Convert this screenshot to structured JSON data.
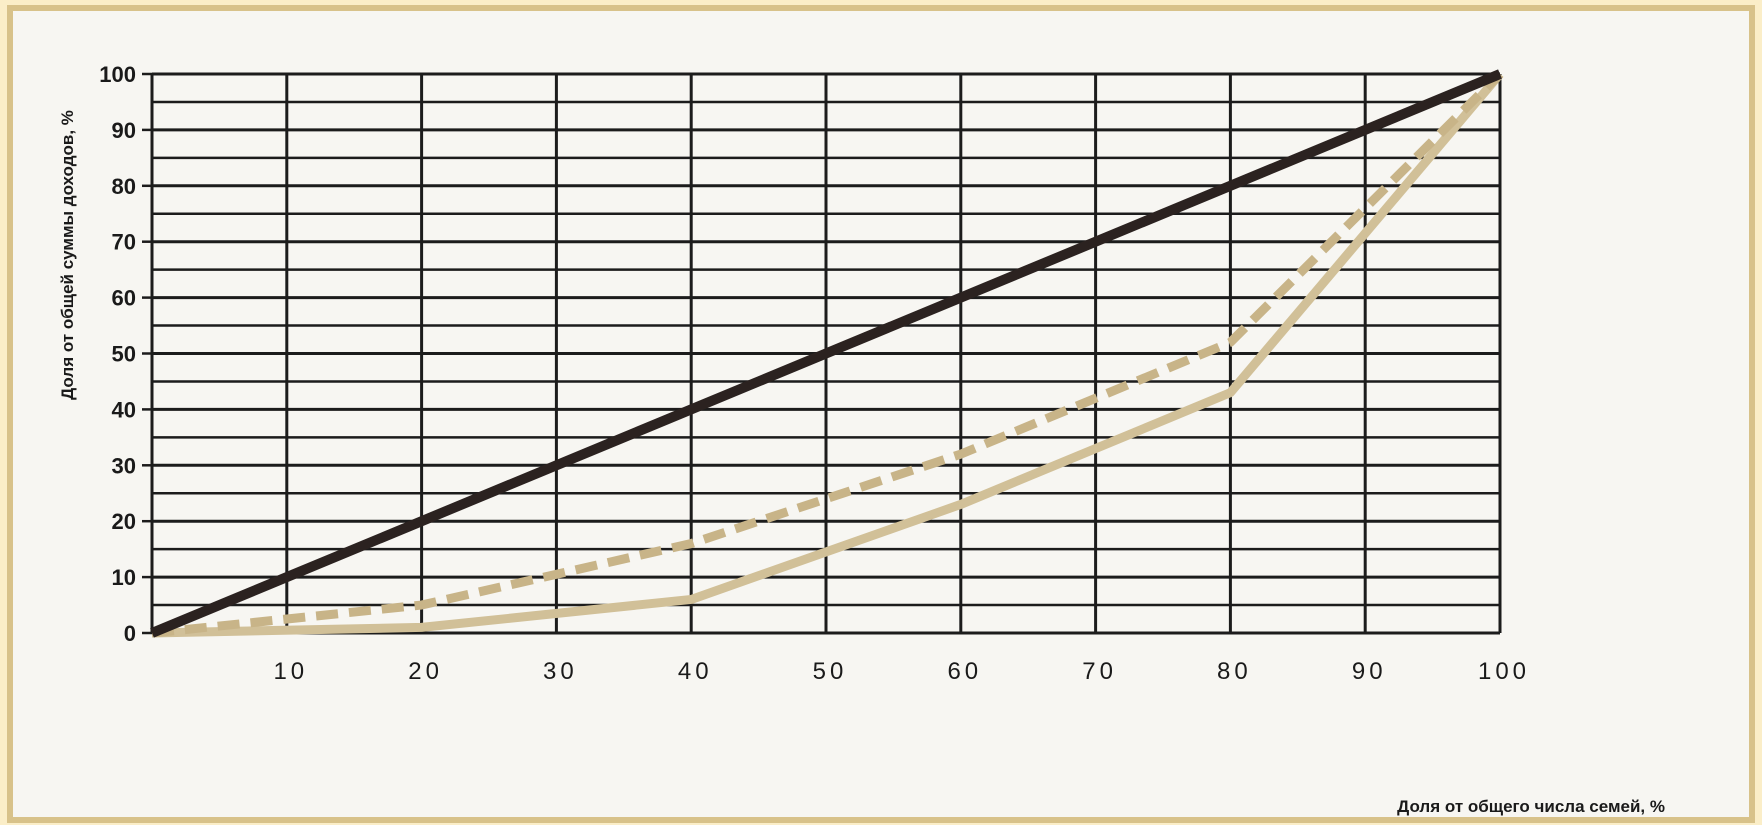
{
  "chart_data": {
    "type": "line",
    "title": "",
    "xlabel": "Доля от общего числа семей, %",
    "ylabel": "Доля от общей суммы доходов, %",
    "xlim": [
      0,
      100
    ],
    "ylim": [
      0,
      100
    ],
    "x_ticks": [
      "10",
      "20",
      "30",
      "40",
      "50",
      "60",
      "70",
      "80",
      "90",
      "100"
    ],
    "y_ticks": [
      "0",
      "10",
      "20",
      "30",
      "40",
      "50",
      "60",
      "70",
      "80",
      "90",
      "100"
    ],
    "grid": true,
    "series": [
      {
        "style": "solid",
        "color": "#2b2220",
        "x": [
          0,
          100
        ],
        "y": [
          0,
          100
        ]
      },
      {
        "style": "dashed",
        "color": "#c8b488",
        "x": [
          0,
          20,
          40,
          60,
          80,
          100
        ],
        "y": [
          0,
          5,
          16,
          32,
          52,
          100
        ]
      },
      {
        "style": "solid",
        "color": "#d1c098",
        "x": [
          0,
          20,
          40,
          60,
          80,
          100
        ],
        "y": [
          0,
          1,
          6,
          23,
          43,
          100
        ]
      }
    ]
  }
}
